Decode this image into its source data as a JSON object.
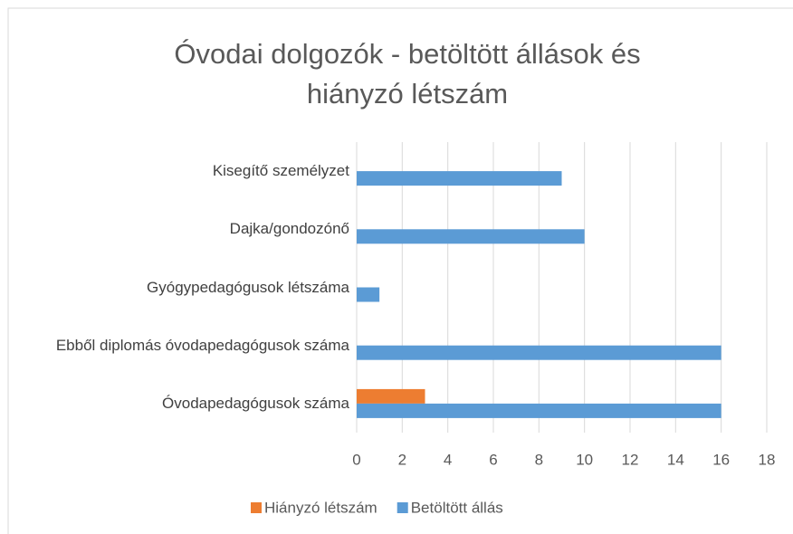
{
  "chart_data": {
    "type": "bar",
    "orientation": "horizontal",
    "title": "Óvodai dolgozók - betöltött állások és hiányzó létszám",
    "categories": [
      "Óvodapedagógusok száma",
      "Ebből diplomás óvodapedagógusok száma",
      "Gyógypedagógusok létszáma",
      "Dajka/gondozónő",
      "Kisegítő személyzet"
    ],
    "series": [
      {
        "name": "Hiányzó létszám",
        "color": "#ed7d31",
        "values": [
          3,
          0,
          0,
          0,
          0
        ]
      },
      {
        "name": "Betöltött állás",
        "color": "#5b9bd5",
        "values": [
          16,
          16,
          1,
          10,
          9
        ]
      }
    ],
    "xlim": [
      0,
      18
    ],
    "xticks": [
      0,
      2,
      4,
      6,
      8,
      10,
      12,
      14,
      16,
      18
    ],
    "grid": true,
    "legend": "bottom"
  }
}
